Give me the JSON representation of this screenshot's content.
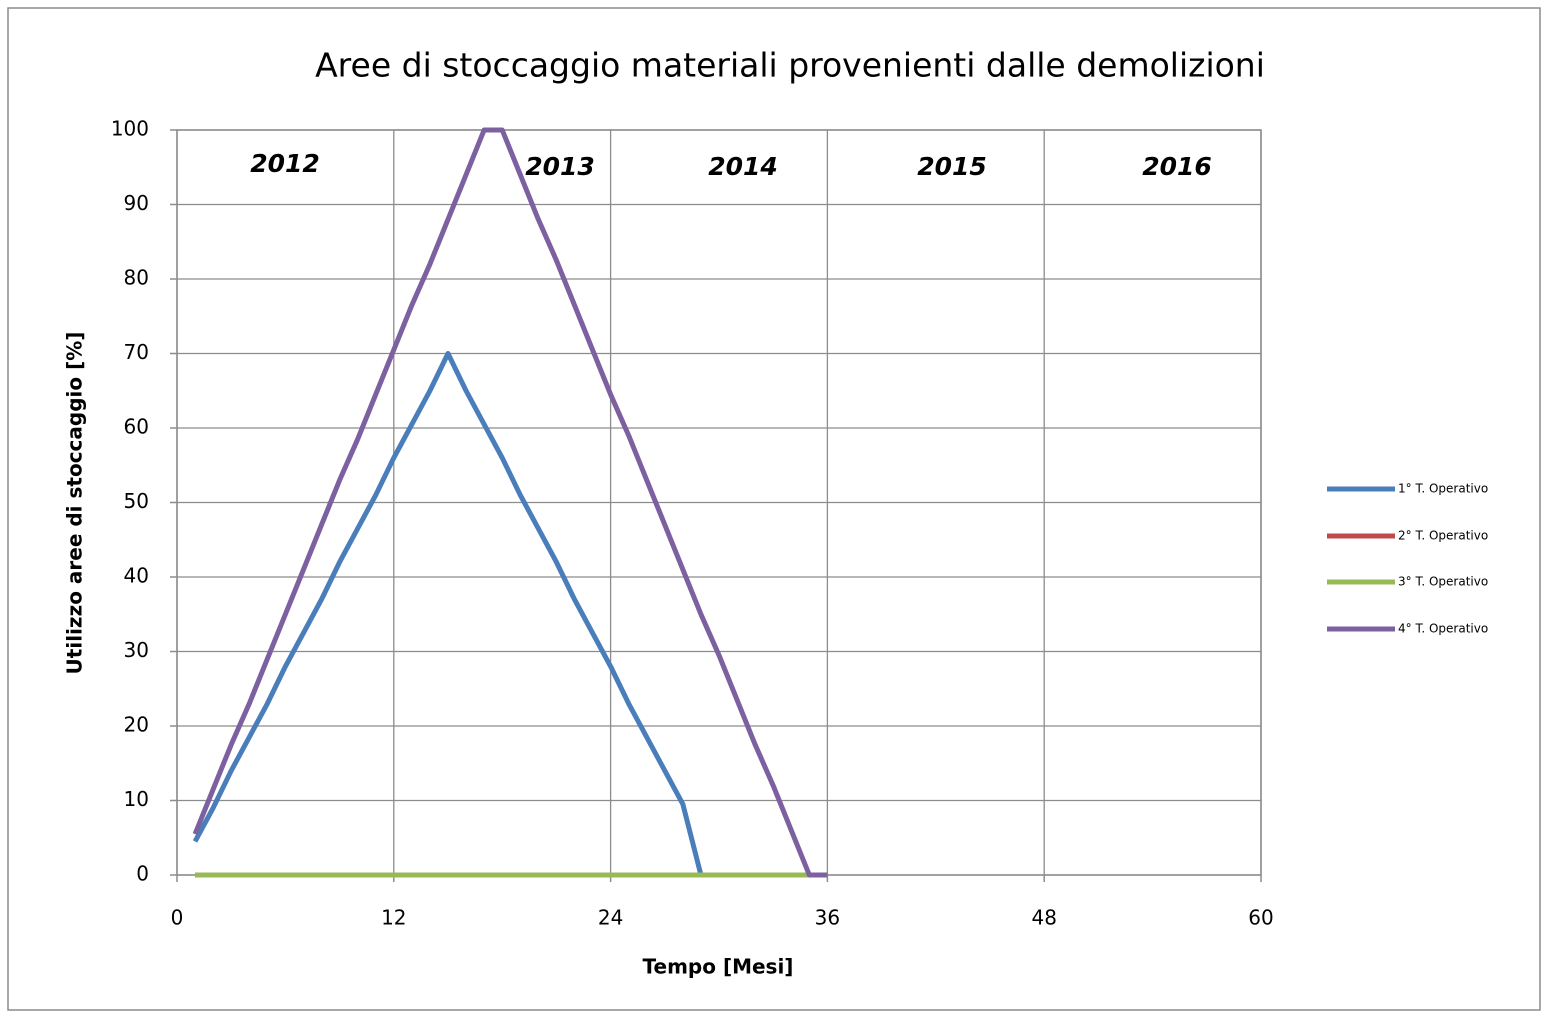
{
  "chart_data": {
    "type": "line",
    "title": "Aree di stoccaggio materiali provenienti dalle demolizioni",
    "x_label": "Tempo [Mesi]",
    "y_label": "Utilizzo aree di stoccaggio  [%]",
    "annotations": [
      "2012",
      "2013",
      "2014",
      "2015",
      "2016"
    ],
    "x": [
      1,
      2,
      3,
      4,
      5,
      6,
      7,
      8,
      9,
      10,
      11,
      12,
      13,
      14,
      15,
      16,
      17,
      18,
      19,
      20,
      21,
      22,
      23,
      24,
      25,
      26,
      27,
      28,
      29,
      30,
      31,
      32,
      33,
      34,
      35,
      36
    ],
    "series": [
      {
        "name": "1° T. Operativo",
        "color": "#4a7ebb",
        "values": [
          4.5,
          9,
          14,
          18.5,
          23,
          28,
          32.5,
          37,
          42,
          46.5,
          51,
          56,
          60.5,
          65,
          70,
          65,
          60.5,
          56,
          51,
          46.5,
          42,
          37,
          32.5,
          28,
          23,
          18.5,
          14,
          9.5,
          0,
          null,
          null,
          null,
          null,
          null,
          null,
          null
        ]
      },
      {
        "name": "2° T. Operativo",
        "color": "#be4b48",
        "values": [
          0,
          0,
          0,
          0,
          0,
          0,
          0,
          0,
          0,
          0,
          0,
          0,
          0,
          0,
          0,
          0,
          0,
          0,
          0,
          0,
          0,
          0,
          0,
          0,
          0,
          0,
          0,
          0,
          0,
          0,
          0,
          0,
          0,
          0,
          0,
          null
        ]
      },
      {
        "name": "3° T. Operativo",
        "color": "#98b954",
        "values": [
          0,
          0,
          0,
          0,
          0,
          0,
          0,
          0,
          0,
          0,
          0,
          0,
          0,
          0,
          0,
          0,
          0,
          0,
          0,
          0,
          0,
          0,
          0,
          0,
          0,
          0,
          0,
          0,
          0,
          0,
          0,
          0,
          0,
          0,
          0,
          null
        ]
      },
      {
        "name": "4° T. Operativo",
        "color": "#7d60a0",
        "values": [
          5.5,
          11.5,
          17.5,
          23,
          29,
          35,
          41,
          47,
          53,
          58.5,
          64.5,
          70.5,
          76.5,
          82,
          88,
          94,
          100,
          100,
          94,
          88,
          82.5,
          76.5,
          70.5,
          64.5,
          59,
          53,
          47,
          41,
          35,
          29.5,
          23.5,
          17.5,
          12,
          6,
          0,
          0
        ]
      }
    ],
    "xlim": [
      0,
      60
    ],
    "xticks": [
      0,
      12,
      24,
      36,
      48,
      60
    ],
    "ylim": [
      0,
      100
    ],
    "yticks": [
      0,
      10,
      20,
      30,
      40,
      50,
      60,
      70,
      80,
      90,
      100
    ],
    "grid": true,
    "legend": "right"
  }
}
